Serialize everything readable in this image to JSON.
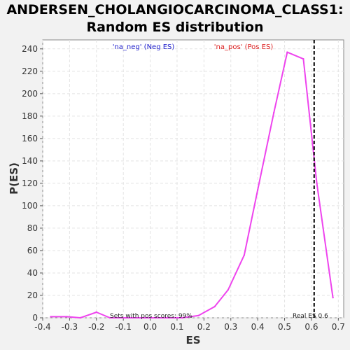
{
  "chart_data": {
    "type": "line",
    "title_line1": "ANDERSEN_CHOLANGIOCARCINOMA_CLASS1:",
    "title_line2": "Random ES distribution",
    "xlabel": "ES",
    "ylabel": "P(ES)",
    "xlim": [
      -0.4,
      0.72
    ],
    "ylim": [
      0,
      248
    ],
    "xticks": [
      -0.4,
      -0.3,
      -0.2,
      -0.1,
      0.0,
      0.1,
      0.2,
      0.3,
      0.4,
      0.5,
      0.6,
      0.7
    ],
    "xtick_labels": [
      "-0.4",
      "-0.3",
      "-0.2",
      "-0.1",
      "0.0",
      "0.1",
      "0.2",
      "0.3",
      "0.4",
      "0.5",
      "0.6",
      "0.7"
    ],
    "yticks": [
      0,
      20,
      40,
      60,
      80,
      100,
      120,
      140,
      160,
      180,
      200,
      220,
      240
    ],
    "grid": true,
    "series": [
      {
        "color": "#ee44ee",
        "x": [
          -0.37,
          -0.31,
          -0.26,
          -0.2,
          -0.15,
          -0.09,
          -0.03,
          0.02,
          0.07,
          0.12,
          0.18,
          0.24,
          0.29,
          0.35,
          0.4,
          0.46,
          0.51,
          0.57,
          0.62,
          0.68
        ],
        "y": [
          1,
          1,
          0,
          5,
          0,
          0,
          0,
          0,
          0,
          0,
          2,
          10,
          25,
          56,
          114,
          183,
          237,
          231,
          120,
          18
        ]
      }
    ],
    "real_es": 0.61,
    "legend": {
      "neg_label": "'na_neg' (Neg ES)",
      "neg_color": "#2222cc",
      "pos_label": "'na_pos' (Pos ES)",
      "pos_color": "#dd2222"
    },
    "annotations": {
      "pos_scores": "Sets with pos scores: 99%",
      "real_es_label": "Real ES 0.6"
    }
  }
}
